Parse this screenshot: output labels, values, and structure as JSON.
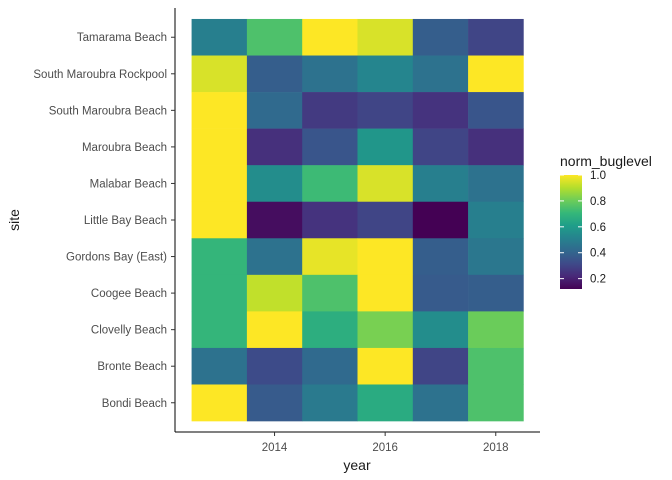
{
  "chart_data": {
    "type": "heatmap",
    "title": "",
    "xlabel": "year",
    "ylabel": "site",
    "x": [
      2013,
      2014,
      2015,
      2016,
      2017,
      2018
    ],
    "x_ticks": [
      2014,
      2016,
      2018
    ],
    "x_tick_labels": [
      "2014",
      "2016",
      "2018"
    ],
    "sites": [
      "Tamarama Beach",
      "South Maroubra Rockpool",
      "South Maroubra Beach",
      "Maroubra Beach",
      "Malabar Beach",
      "Little Bay Beach",
      "Gordons Bay (East)",
      "Coogee Beach",
      "Clovelly Beach",
      "Bronte Beach",
      "Bondi Beach"
    ],
    "values": [
      [
        0.5,
        0.75,
        1.0,
        0.95,
        0.38,
        0.3
      ],
      [
        0.95,
        0.38,
        0.45,
        0.52,
        0.45,
        1.0
      ],
      [
        1.0,
        0.42,
        0.27,
        0.3,
        0.25,
        0.35
      ],
      [
        1.0,
        0.24,
        0.35,
        0.58,
        0.3,
        0.24
      ],
      [
        1.0,
        0.55,
        0.72,
        0.95,
        0.5,
        0.45
      ],
      [
        1.0,
        0.15,
        0.25,
        0.3,
        0.12,
        0.5
      ],
      [
        0.7,
        0.45,
        0.97,
        1.0,
        0.38,
        0.47
      ],
      [
        0.7,
        0.92,
        0.75,
        1.0,
        0.37,
        0.38
      ],
      [
        0.7,
        1.0,
        0.67,
        0.82,
        0.55,
        0.8
      ],
      [
        0.45,
        0.32,
        0.42,
        1.0,
        0.3,
        0.75
      ],
      [
        1.0,
        0.37,
        0.48,
        0.66,
        0.45,
        0.75
      ]
    ],
    "legend": {
      "title": "norm_buglevel",
      "min": 0.12,
      "max": 1.0,
      "ticks": [
        0.2,
        0.4,
        0.6,
        0.8,
        1.0
      ],
      "tick_labels": [
        "0.2",
        "0.4",
        "0.6",
        "0.8",
        "1.0"
      ],
      "placement": "right"
    },
    "colormap": [
      "#440154",
      "#482878",
      "#3e4a89",
      "#31688e",
      "#26828e",
      "#1f9e89",
      "#35b779",
      "#6dcd59",
      "#b4de2c",
      "#fde725"
    ],
    "grid": false
  }
}
